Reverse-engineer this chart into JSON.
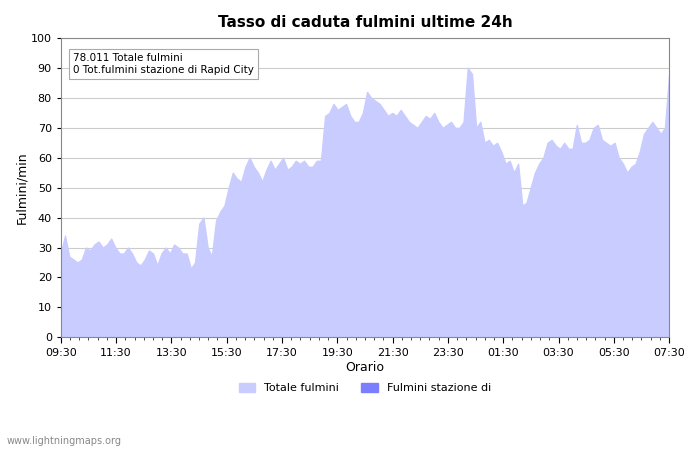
{
  "title": "Tasso di caduta fulmini ultime 24h",
  "xlabel": "Orario",
  "ylabel": "Fulmini/min",
  "ylim": [
    0,
    100
  ],
  "yticks": [
    0,
    10,
    20,
    30,
    40,
    50,
    60,
    70,
    80,
    90,
    100
  ],
  "xtick_labels": [
    "09:30",
    "11:30",
    "13:30",
    "15:30",
    "17:30",
    "19:30",
    "21:30",
    "23:30",
    "01:30",
    "03:30",
    "05:30",
    "07:30"
  ],
  "annotation_line1": "78.011 Totale fulmini",
  "annotation_line2": "0 Tot.fulmini stazione di Rapid City",
  "legend_label1": "Totale fulmini",
  "legend_label2": "Fulmini stazione di",
  "fill_color": "#c8ccff",
  "fill_color2": "#7b7fff",
  "background_color": "#ffffff",
  "watermark": "www.lightningmaps.org",
  "y_values": [
    28,
    34,
    27,
    26,
    25,
    26,
    30,
    29,
    31,
    32,
    30,
    31,
    33,
    30,
    28,
    28,
    30,
    28,
    25,
    24,
    26,
    29,
    28,
    24,
    28,
    30,
    28,
    31,
    30,
    28,
    28,
    23,
    25,
    38,
    40,
    30,
    27,
    39,
    42,
    44,
    50,
    55,
    53,
    52,
    57,
    60,
    57,
    55,
    52,
    56,
    59,
    56,
    58,
    60,
    56,
    57,
    59,
    58,
    59,
    57,
    57,
    59,
    59,
    74,
    75,
    78,
    76,
    77,
    78,
    74,
    72,
    72,
    75,
    82,
    80,
    79,
    78,
    76,
    74,
    75,
    74,
    76,
    74,
    72,
    71,
    70,
    72,
    74,
    73,
    75,
    72,
    70,
    71,
    72,
    70,
    70,
    72,
    90,
    88,
    70,
    72,
    65,
    66,
    64,
    65,
    62,
    58,
    59,
    55,
    58,
    44,
    45,
    50,
    55,
    58,
    60,
    65,
    66,
    64,
    63,
    65,
    63,
    63,
    71,
    65,
    65,
    66,
    70,
    71,
    66,
    65,
    64,
    65,
    60,
    58,
    55,
    57,
    58,
    62,
    68,
    70,
    72,
    70,
    68,
    70,
    88
  ]
}
